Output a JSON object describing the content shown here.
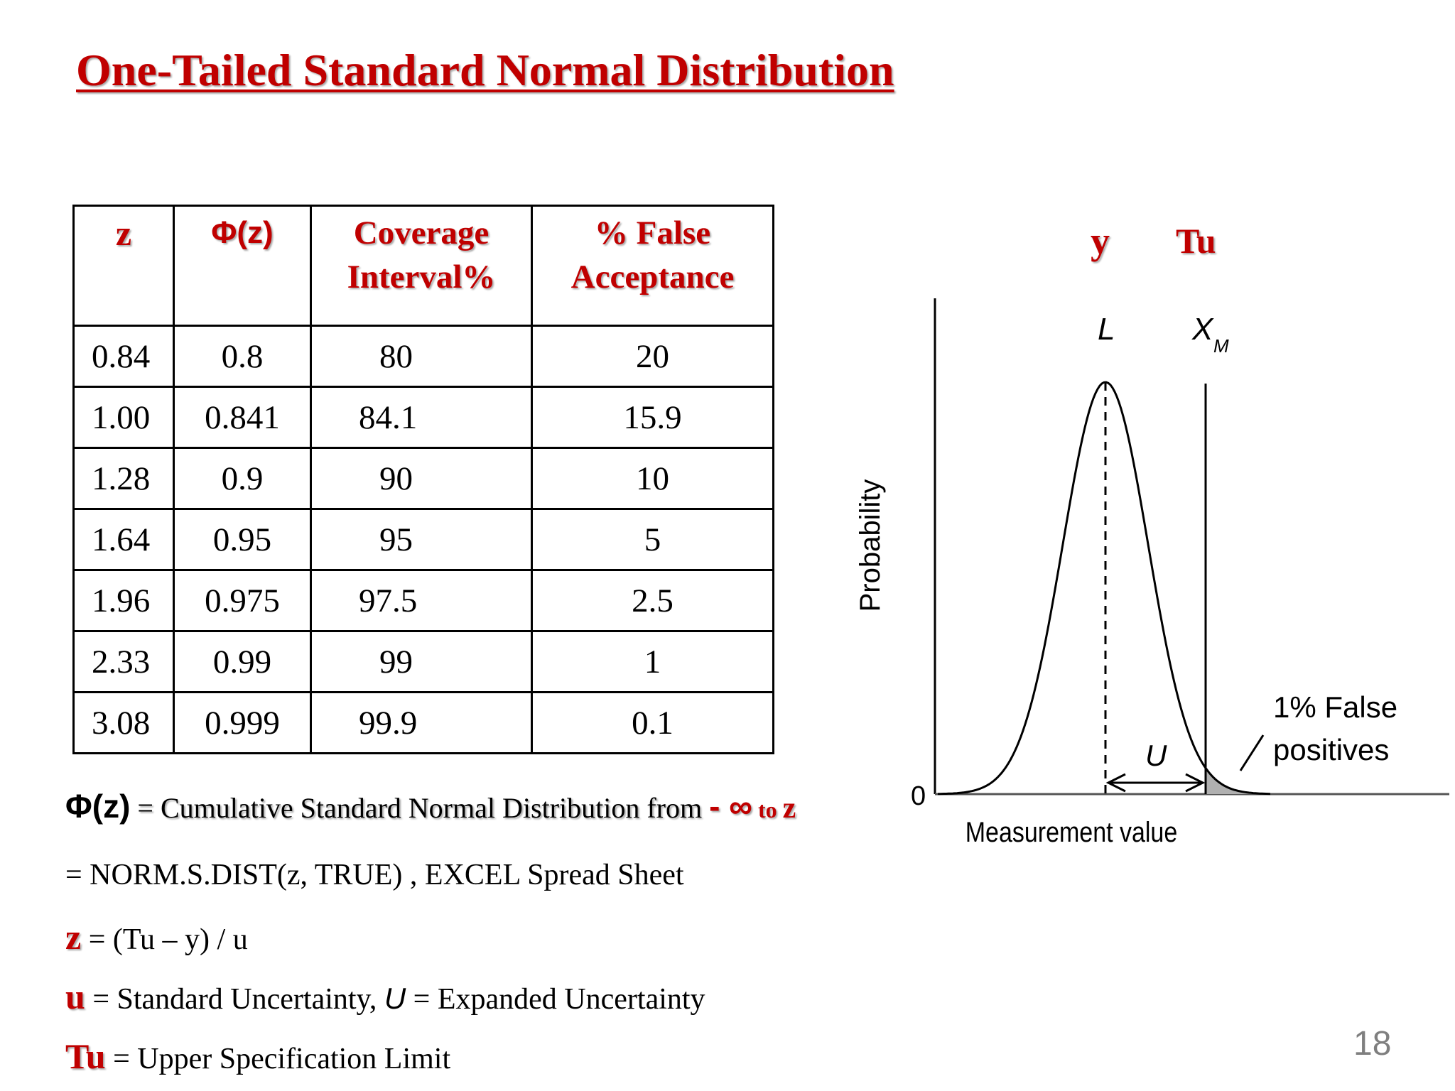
{
  "title": "One-Tailed Standard Normal Distribution",
  "table": {
    "headers": [
      "z",
      "Φ(z)",
      "Coverage Interval%",
      "% False Acceptance"
    ],
    "rows": [
      [
        "0.84",
        "0.8",
        "80",
        "20"
      ],
      [
        "1.00",
        "0.841",
        "84.1",
        "15.9"
      ],
      [
        "1.28",
        "0.9",
        "90",
        "10"
      ],
      [
        "1.64",
        "0.95",
        "95",
        "5"
      ],
      [
        "1.96",
        "0.975",
        "97.5",
        "2.5"
      ],
      [
        "2.33",
        "0.99",
        "99",
        "1"
      ],
      [
        "3.08",
        "0.999",
        "99.9",
        "0.1"
      ]
    ]
  },
  "notes": {
    "phi_key": "Φ(z)",
    "phi_text": " = Cumulative Standard Normal Distribution from ",
    "phi_range_inf": "- ∞",
    "phi_range_to": " to ",
    "phi_range_z": "z",
    "excel_line": "= NORM.S.DIST(z, TRUE) , EXCEL Spread Sheet",
    "z_key": "z",
    "z_def": " = (Tu – y) / u",
    "u_key": "u",
    "u_def_1": " = Standard Uncertainty, ",
    "u_def_U": "U",
    "u_def_2": " = Expanded Uncertainty",
    "tu_key": "Tu",
    "tu_def": " = Upper Specification Limit"
  },
  "diagram": {
    "label_y": "y",
    "label_tu": "Tu",
    "label_L": "L",
    "label_XM": "X",
    "label_XM_sub": "M",
    "label_U": "U",
    "y_axis_label": "Probability",
    "x_axis_label": "Measurement value",
    "zero_label": "0",
    "callout_line1": "1% False",
    "callout_line2": "positives"
  },
  "page_number": "18",
  "colors": {
    "accent": "#c00000",
    "page_number": "#7f7f7f"
  }
}
